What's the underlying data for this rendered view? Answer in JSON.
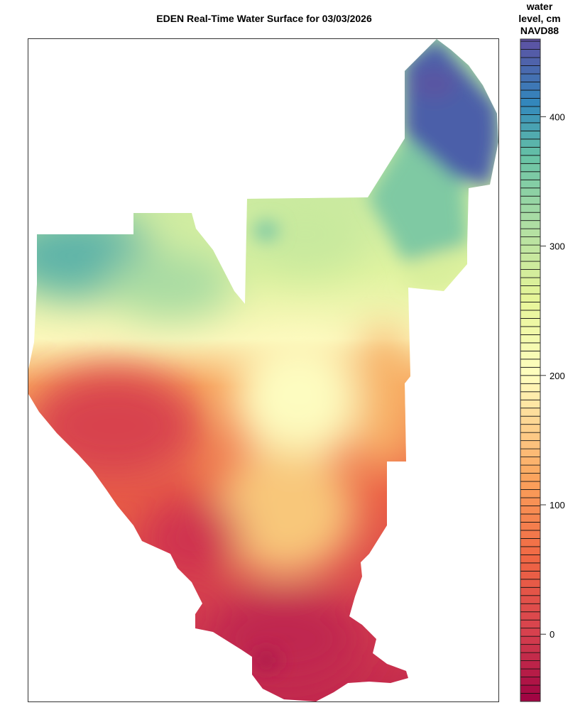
{
  "title": "EDEN Real-Time Water Surface for 03/03/2026",
  "legend": {
    "title_lines": [
      "water",
      "level, cm",
      "NAVD88"
    ],
    "range": [
      -52,
      460
    ],
    "band_step": 6.3,
    "ticks": [
      0,
      100,
      200,
      300,
      400
    ],
    "tick_labels": [
      "0",
      "100",
      "200",
      "300",
      "400"
    ],
    "color_stops": [
      {
        "value": -52,
        "color": "#9e0142"
      },
      {
        "value": 0,
        "color": "#d6404e"
      },
      {
        "value": 60,
        "color": "#f06744"
      },
      {
        "value": 120,
        "color": "#fba35c"
      },
      {
        "value": 200,
        "color": "#ffffbf"
      },
      {
        "value": 260,
        "color": "#e6f598"
      },
      {
        "value": 320,
        "color": "#abdda4"
      },
      {
        "value": 370,
        "color": "#66c2a5"
      },
      {
        "value": 410,
        "color": "#3288bd"
      },
      {
        "value": 460,
        "color": "#5e4fa2"
      }
    ]
  },
  "map": {
    "type": "heatmap",
    "surface": "water level, cm NAVD88",
    "colors": {
      "northeast_high": "#4b5fa9",
      "northeast_mid": "#7fc9a3",
      "northwest": "#5fb4a8",
      "central_band": "#eef7b0",
      "center_low_south": "#fdfcc0",
      "south": "#c62a4d",
      "southwest": "#d8434d",
      "east_edge": "#f7b267"
    }
  }
}
